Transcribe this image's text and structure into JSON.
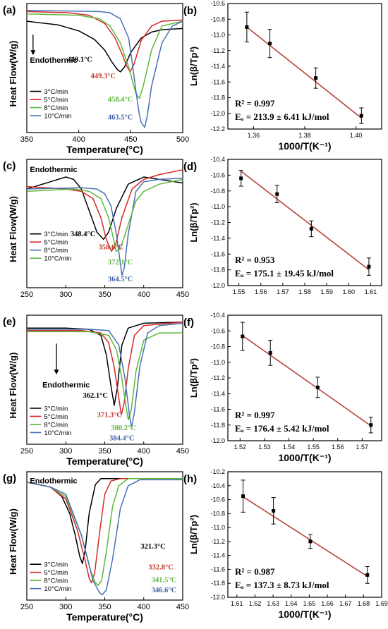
{
  "chart_data": [
    {
      "panel": "(a)",
      "type": "line",
      "xlabel": "Temperature(°C)",
      "ylabel": "Heat Flow(W/g)",
      "xlim": [
        350,
        500
      ],
      "xticks": [
        350,
        400,
        450,
        500
      ],
      "annotation": "Endothermic",
      "legend_position": "bottom-left",
      "series": [
        {
          "name": "3°C/min",
          "color": "#000000",
          "peak_label": "440.1°C",
          "x": [
            350,
            380,
            400,
            415,
            425,
            432,
            437,
            440.1,
            444,
            450,
            460,
            470,
            480,
            500
          ],
          "y": [
            0.9,
            0.87,
            0.82,
            0.75,
            0.66,
            0.56,
            0.5,
            0.48,
            0.52,
            0.64,
            0.76,
            0.81,
            0.83,
            0.84
          ]
        },
        {
          "name": "5°C/min",
          "color": "#d62728",
          "peak_label": "449.3°C",
          "x": [
            350,
            390,
            410,
            425,
            435,
            442,
            446,
            449.3,
            453,
            460,
            470,
            480,
            500
          ],
          "y": [
            0.98,
            0.97,
            0.95,
            0.88,
            0.76,
            0.62,
            0.53,
            0.48,
            0.54,
            0.74,
            0.86,
            0.9,
            0.91
          ]
        },
        {
          "name": "8°C/min",
          "color": "#5cb83a",
          "peak_label": "458.4°C",
          "x": [
            350,
            400,
            420,
            430,
            440,
            448,
            453,
            455,
            458.4,
            462,
            470,
            480,
            500
          ],
          "y": [
            0.96,
            0.95,
            0.92,
            0.86,
            0.72,
            0.52,
            0.36,
            0.3,
            0.26,
            0.36,
            0.66,
            0.86,
            0.9
          ]
        },
        {
          "name": "10°C/min",
          "color": "#4a6fb5",
          "peak_label": "463.5°C",
          "x": [
            350,
            420,
            430,
            440,
            448,
            452,
            455,
            458,
            460,
            463.5,
            466,
            470,
            480,
            490,
            500
          ],
          "y": [
            0.99,
            0.98,
            0.97,
            0.92,
            0.76,
            0.52,
            0.32,
            0.14,
            0.06,
            0.02,
            0.12,
            0.36,
            0.72,
            0.86,
            0.9
          ]
        }
      ]
    },
    {
      "panel": "(b)",
      "type": "scatter",
      "xlabel": "1000/T(K⁻¹)",
      "ylabel": "Ln(β/Tp²)",
      "xlim": [
        1.35,
        1.41
      ],
      "ylim": [
        -12.2,
        -10.6
      ],
      "xticks": [
        1.36,
        1.38,
        1.4
      ],
      "yticks": [
        -10.6,
        -10.8,
        -11.0,
        -11.2,
        -11.4,
        -11.6,
        -11.8,
        -12.0,
        -12.2
      ],
      "r2": "R² = 0.997",
      "ea": "Eₐ = 213.9 ± 6.41 kJ/mol",
      "points": [
        {
          "x": 1.3574,
          "y": -10.9,
          "err": 0.19
        },
        {
          "x": 1.3664,
          "y": -11.11,
          "err": 0.18
        },
        {
          "x": 1.3843,
          "y": -11.55,
          "err": 0.13
        },
        {
          "x": 1.4021,
          "y": -12.03,
          "err": 0.1
        }
      ],
      "fit": {
        "x": [
          1.3574,
          1.4021
        ],
        "y": [
          -10.9,
          -12.06
        ]
      }
    },
    {
      "panel": "(c)",
      "type": "line",
      "xlabel": "",
      "ylabel": "Heat Flow(W/g)",
      "xlim": [
        250,
        450
      ],
      "xticks": [
        250,
        300,
        350,
        400,
        450
      ],
      "annotation": "Endothermic",
      "legend_position": "bottom-left",
      "series": [
        {
          "name": "3°C/min",
          "color": "#000000",
          "peak_label": "348.4°C",
          "x": [
            250,
            280,
            300,
            310,
            320,
            330,
            340,
            348.4,
            355,
            365,
            380,
            400,
            420,
            450
          ],
          "y": [
            0.8,
            0.86,
            0.9,
            0.88,
            0.8,
            0.62,
            0.44,
            0.38,
            0.44,
            0.64,
            0.84,
            0.9,
            0.88,
            0.85
          ]
        },
        {
          "name": "5°C/min",
          "color": "#d62728",
          "peak_label": "358.6°C",
          "x": [
            250,
            300,
            320,
            335,
            345,
            352,
            358.6,
            364,
            372,
            385,
            400,
            420,
            450
          ],
          "y": [
            0.82,
            0.8,
            0.78,
            0.72,
            0.56,
            0.38,
            0.28,
            0.34,
            0.56,
            0.8,
            0.88,
            0.92,
            0.96
          ]
        },
        {
          "name": "8°C/min",
          "color": "#4a6fb5",
          "peak_label": "372.1°C",
          "x": [
            250,
            320,
            340,
            350,
            358,
            365,
            370,
            372.1,
            375,
            380,
            390,
            400,
            420,
            450
          ],
          "y": [
            0.8,
            0.81,
            0.8,
            0.76,
            0.66,
            0.42,
            0.18,
            0.08,
            0.14,
            0.42,
            0.78,
            0.86,
            0.88,
            0.89
          ]
        },
        {
          "name": "10°C/min",
          "color": "#5cb83a",
          "peak_label": "364.5°C",
          "x": [
            250,
            310,
            330,
            345,
            355,
            362,
            364.5,
            370,
            378,
            390,
            400,
            420,
            450
          ],
          "y": [
            0.78,
            0.8,
            0.78,
            0.72,
            0.56,
            0.36,
            0.28,
            0.3,
            0.46,
            0.7,
            0.78,
            0.84,
            0.88
          ]
        }
      ]
    },
    {
      "panel": "(d)",
      "type": "scatter",
      "xlabel": "",
      "ylabel": "Ln(β/Tp²)",
      "xlim": [
        1.545,
        1.615
      ],
      "ylim": [
        -12.0,
        -10.4
      ],
      "xticks": [
        1.55,
        1.56,
        1.57,
        1.58,
        1.59,
        1.6,
        1.61
      ],
      "yticks": [
        -10.4,
        -10.6,
        -10.8,
        -11.0,
        -11.2,
        -11.4,
        -11.6,
        -11.8,
        -12.0
      ],
      "r2": "R² = 0.953",
      "ea": "Eₐ = 175.1 ± 19.45 kJ/mol",
      "points": [
        {
          "x": 1.551,
          "y": -10.64,
          "err": 0.1
        },
        {
          "x": 1.5674,
          "y": -10.84,
          "err": 0.11
        },
        {
          "x": 1.583,
          "y": -11.28,
          "err": 0.1
        },
        {
          "x": 1.6092,
          "y": -11.76,
          "err": 0.11
        }
      ],
      "fit": {
        "x": [
          1.551,
          1.6092
        ],
        "y": [
          -10.55,
          -11.8
        ]
      }
    },
    {
      "panel": "(e)",
      "type": "line",
      "xlabel": "Temperature(°C)",
      "ylabel": "Heat Flow(W/g)",
      "xlim": [
        250,
        450
      ],
      "xticks": [
        250,
        300,
        350,
        400,
        450
      ],
      "annotation": "Endothermic",
      "legend_position": "bottom-left",
      "series": [
        {
          "name": "3°C/min",
          "color": "#000000",
          "peak_label": "362.1°C",
          "x": [
            250,
            300,
            330,
            345,
            352,
            358,
            362.1,
            366,
            372,
            380,
            400,
            450
          ],
          "y": [
            0.94,
            0.94,
            0.93,
            0.88,
            0.72,
            0.46,
            0.3,
            0.44,
            0.8,
            0.94,
            0.98,
            0.99
          ]
        },
        {
          "name": "5°C/min",
          "color": "#d62728",
          "peak_label": "371.3°C",
          "x": [
            250,
            320,
            345,
            355,
            362,
            368,
            371.3,
            375,
            380,
            388,
            400,
            450
          ],
          "y": [
            0.92,
            0.92,
            0.9,
            0.82,
            0.62,
            0.36,
            0.22,
            0.32,
            0.6,
            0.88,
            0.96,
            0.99
          ]
        },
        {
          "name": "8°C/min",
          "color": "#5cb83a",
          "peak_label": "380.2°C",
          "x": [
            250,
            330,
            355,
            365,
            372,
            378,
            380.2,
            384,
            390,
            400,
            420,
            450
          ],
          "y": [
            0.91,
            0.91,
            0.88,
            0.76,
            0.52,
            0.26,
            0.18,
            0.26,
            0.58,
            0.84,
            0.9,
            0.9
          ]
        },
        {
          "name": "10°C/min",
          "color": "#4a6fb5",
          "peak_label": "384.4°C",
          "x": [
            250,
            330,
            355,
            368,
            376,
            382,
            384.4,
            388,
            395,
            405,
            420,
            450
          ],
          "y": [
            0.93,
            0.93,
            0.92,
            0.8,
            0.52,
            0.2,
            0.12,
            0.24,
            0.62,
            0.9,
            0.96,
            0.98
          ]
        }
      ]
    },
    {
      "panel": "(f)",
      "type": "scatter",
      "xlabel": "1000/T(K⁻¹)",
      "ylabel": "Ln(β/Tp²)",
      "xlim": [
        1.515,
        1.578
      ],
      "ylim": [
        -12.0,
        -10.4
      ],
      "xticks": [
        1.52,
        1.53,
        1.54,
        1.55,
        1.56,
        1.57
      ],
      "yticks": [
        -10.4,
        -10.6,
        -10.8,
        -11.0,
        -11.2,
        -11.4,
        -11.6,
        -11.8,
        -12.0
      ],
      "r2": "R² = 0.997",
      "ea": "Eₐ = 176.4 ± 5.42 kJ/mol",
      "points": [
        {
          "x": 1.521,
          "y": -10.67,
          "err": 0.18
        },
        {
          "x": 1.5324,
          "y": -10.88,
          "err": 0.16
        },
        {
          "x": 1.5518,
          "y": -11.32,
          "err": 0.13
        },
        {
          "x": 1.5736,
          "y": -11.8,
          "err": 0.1
        }
      ],
      "fit": {
        "x": [
          1.521,
          1.5736
        ],
        "y": [
          -10.66,
          -11.81
        ]
      }
    },
    {
      "panel": "(g)",
      "type": "line",
      "xlabel": "Temperature(°C)",
      "ylabel": "Heat Flow(W/g)",
      "xlim": [
        250,
        450
      ],
      "xticks": [
        250,
        300,
        350,
        400,
        450
      ],
      "annotation": "Endothermic",
      "legend_position": "bottom-left",
      "series": [
        {
          "name": "3°C/min",
          "color": "#000000",
          "peak_label": "321.3°C",
          "x": [
            250,
            280,
            295,
            305,
            312,
            318,
            321.3,
            325,
            330,
            338,
            345,
            360,
            450
          ],
          "y": [
            0.96,
            0.92,
            0.84,
            0.7,
            0.52,
            0.34,
            0.28,
            0.4,
            0.7,
            0.94,
            0.99,
            0.99,
            0.99
          ]
        },
        {
          "name": "5°C/min",
          "color": "#d62728",
          "peak_label": "332.8°C",
          "x": [
            250,
            280,
            300,
            315,
            325,
            330,
            332.8,
            337,
            343,
            350,
            358,
            370,
            450
          ],
          "y": [
            0.96,
            0.92,
            0.82,
            0.56,
            0.3,
            0.16,
            0.12,
            0.2,
            0.52,
            0.86,
            0.97,
            0.99,
            0.99
          ]
        },
        {
          "name": "8°C/min",
          "color": "#5cb83a",
          "peak_label": "341.5°C",
          "x": [
            250,
            280,
            300,
            320,
            332,
            338,
            341.5,
            346,
            352,
            360,
            368,
            380,
            450
          ],
          "y": [
            0.96,
            0.92,
            0.84,
            0.52,
            0.22,
            0.12,
            0.1,
            0.14,
            0.38,
            0.76,
            0.93,
            0.99,
            0.99
          ]
        },
        {
          "name": "10°C/min",
          "color": "#4a6fb5",
          "peak_label": "346.6°C",
          "x": [
            250,
            280,
            300,
            320,
            335,
            343,
            346.6,
            352,
            360,
            370,
            380,
            395,
            450
          ],
          "y": [
            0.96,
            0.92,
            0.86,
            0.52,
            0.14,
            0.04,
            0.02,
            0.06,
            0.32,
            0.74,
            0.93,
            0.98,
            0.98
          ]
        }
      ]
    },
    {
      "panel": "(h)",
      "type": "scatter",
      "xlabel": "1000/T(K⁻¹)",
      "ylabel": "Ln(β/Tp²)",
      "xlim": [
        1.605,
        1.69
      ],
      "ylim": [
        -12.0,
        -10.2
      ],
      "xticks": [
        1.61,
        1.62,
        1.63,
        1.64,
        1.65,
        1.66,
        1.67,
        1.68,
        1.69
      ],
      "yticks": [
        -10.2,
        -10.4,
        -10.6,
        -10.8,
        -11.0,
        -11.2,
        -11.4,
        -11.6,
        -11.8,
        -12.0
      ],
      "r2": "R² = 0.987",
      "ea": "Eₐ = 137.3 ± 8.73 kJ/mol",
      "points": [
        {
          "x": 1.6134,
          "y": -10.55,
          "err": 0.23
        },
        {
          "x": 1.6302,
          "y": -10.76,
          "err": 0.19
        },
        {
          "x": 1.6506,
          "y": -11.2,
          "err": 0.1
        },
        {
          "x": 1.6821,
          "y": -11.68,
          "err": 0.12
        }
      ],
      "fit": {
        "x": [
          1.6134,
          1.6821
        ],
        "y": [
          -10.56,
          -11.7
        ]
      }
    }
  ]
}
